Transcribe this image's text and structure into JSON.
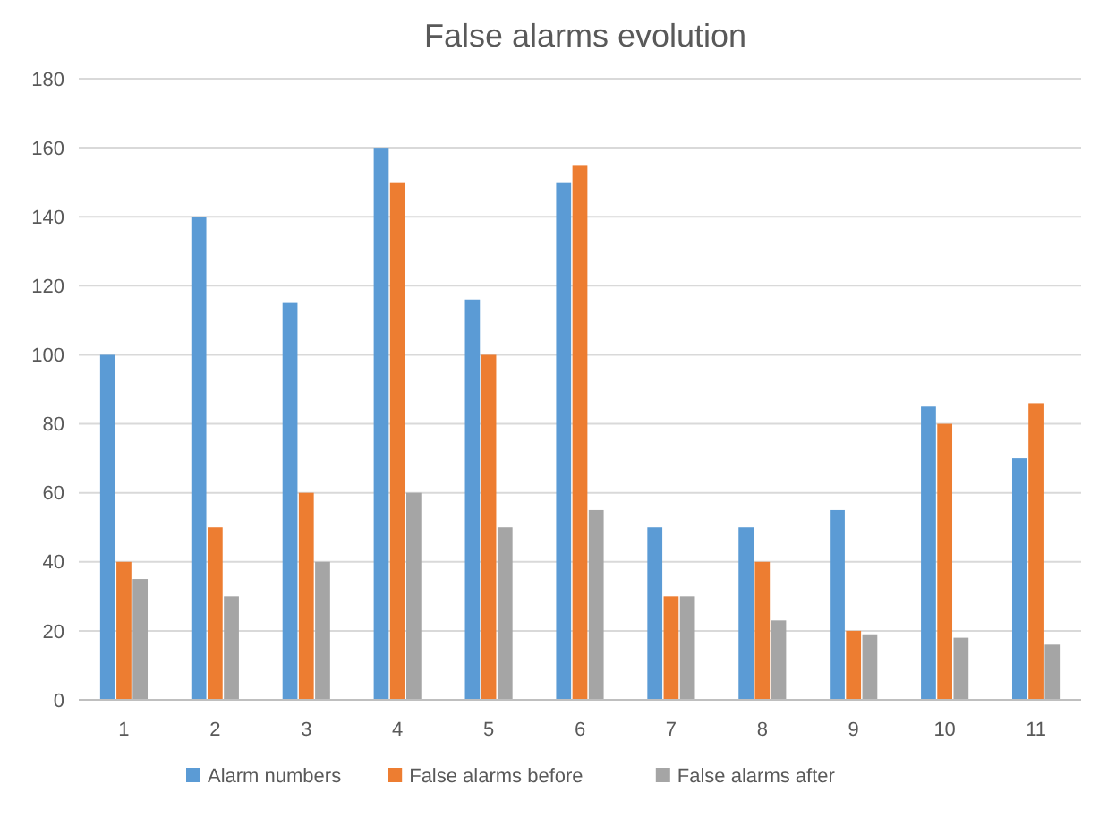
{
  "chart_data": {
    "type": "bar",
    "title": "False alarms evolution",
    "categories": [
      "1",
      "2",
      "3",
      "4",
      "5",
      "6",
      "7",
      "8",
      "9",
      "10",
      "11"
    ],
    "series": [
      {
        "name": "Alarm numbers",
        "color": "#5b9bd5",
        "values": [
          100,
          140,
          115,
          160,
          116,
          150,
          50,
          50,
          55,
          85,
          70
        ]
      },
      {
        "name": "False alarms before",
        "color": "#ed7d31",
        "values": [
          40,
          50,
          60,
          150,
          100,
          155,
          30,
          40,
          20,
          80,
          86
        ]
      },
      {
        "name": "False alarms after",
        "color": "#a5a5a5",
        "values": [
          35,
          30,
          40,
          60,
          50,
          55,
          30,
          23,
          19,
          18,
          16
        ]
      }
    ],
    "ylim": [
      0,
      180
    ],
    "yticks": [
      0,
      20,
      40,
      60,
      80,
      100,
      120,
      140,
      160,
      180
    ],
    "grid": "y",
    "legend": "bottom"
  }
}
